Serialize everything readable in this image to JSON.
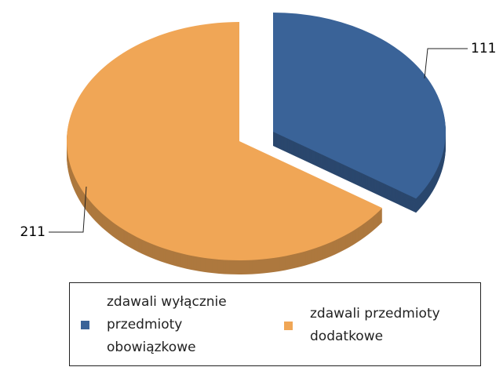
{
  "chart_data": {
    "type": "pie",
    "categories": [
      "zdawali wyłącznie przedmioty obowiązkowe",
      "zdawali przedmioty dodatkowe"
    ],
    "values": [
      111,
      211
    ],
    "colors": [
      "#3a6398",
      "#f0a656"
    ]
  }
}
